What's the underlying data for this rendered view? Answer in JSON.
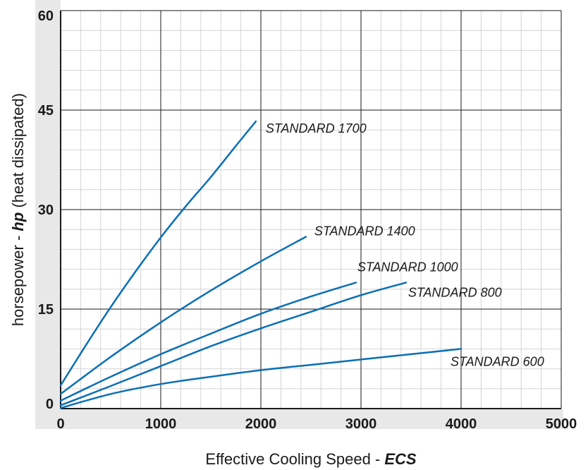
{
  "chart_data": {
    "type": "line",
    "xlabel": {
      "text": "Effective Cooling Speed  - ",
      "emphasis": "ECS"
    },
    "ylabel": {
      "text": "horsepower - ",
      "emphasis": "hp",
      "suffix": "  (heat dissipated)"
    },
    "xlim": [
      0,
      5000
    ],
    "ylim": [
      0,
      60
    ],
    "x_ticks": [
      "0",
      "1000",
      "2000",
      "3000",
      "4000",
      "5000"
    ],
    "y_ticks": [
      "0",
      "15",
      "30",
      "45",
      "60"
    ],
    "grid": true,
    "colors": {
      "series": "#0a6fb5",
      "tick_band": "#e8e8e8",
      "minor_grid": "#d4d4d4",
      "major_grid": "#1a1a1a"
    },
    "series": [
      {
        "name": "STANDARD 1700",
        "x": [
          0,
          250,
          500,
          750,
          1000,
          1250,
          1500,
          1750,
          1950
        ],
        "y": [
          3.5,
          9.5,
          15.3,
          20.7,
          25.8,
          30.5,
          34.9,
          39.6,
          43.3
        ]
      },
      {
        "name": "STANDARD 1400",
        "x": [
          0,
          500,
          1000,
          1500,
          2000,
          2450
        ],
        "y": [
          2.2,
          7.8,
          13.0,
          17.8,
          22.2,
          25.9
        ]
      },
      {
        "name": "STANDARD 1000",
        "x": [
          0,
          500,
          1000,
          1500,
          2000,
          2500,
          2950
        ],
        "y": [
          1.2,
          4.8,
          8.2,
          11.3,
          14.3,
          16.9,
          19.0
        ]
      },
      {
        "name": "STANDARD 800",
        "x": [
          0,
          500,
          1000,
          1500,
          2000,
          2500,
          3000,
          3450
        ],
        "y": [
          0.5,
          3.4,
          6.4,
          9.4,
          12.1,
          14.6,
          17.1,
          19.0
        ]
      },
      {
        "name": "STANDARD 600",
        "x": [
          0,
          500,
          1000,
          1500,
          2000,
          2500,
          3000,
          3500,
          4000
        ],
        "y": [
          0.1,
          2.2,
          3.7,
          4.8,
          5.8,
          6.6,
          7.4,
          8.2,
          9.0
        ]
      }
    ]
  }
}
